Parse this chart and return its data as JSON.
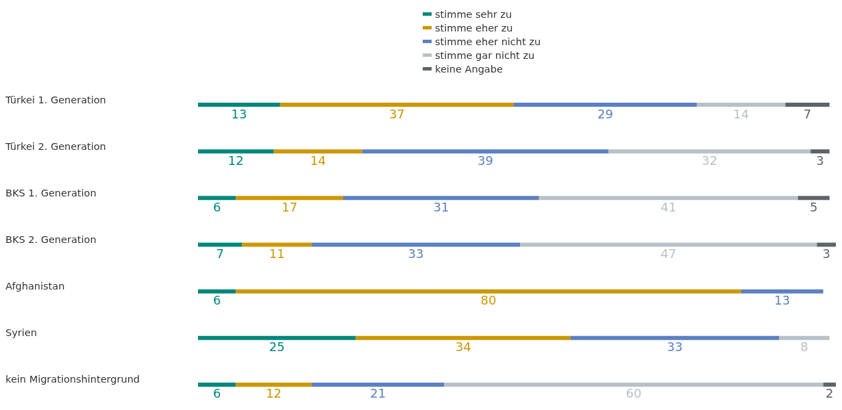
{
  "chart_data": {
    "type": "bar",
    "orientation": "horizontal",
    "stacked": true,
    "tick_labels": "y",
    "data_labels": true,
    "legend": "top",
    "categories": [
      "Türkei 1. Generation",
      "Türkei 2. Generation",
      "BKS 1. Generation",
      "BKS 2. Generation",
      "Afghanistan",
      "Syrien",
      "kein Migrationshintergrund"
    ],
    "series": [
      {
        "name": "stimme sehr zu",
        "color": "#00877c",
        "values": [
          13,
          12,
          6,
          7,
          6,
          25,
          6
        ]
      },
      {
        "name": "stimme eher zu",
        "color": "#cc9700",
        "values": [
          37,
          14,
          17,
          11,
          80,
          34,
          12
        ]
      },
      {
        "name": "stimme eher nicht zu",
        "color": "#5b80c3",
        "values": [
          29,
          39,
          31,
          33,
          13,
          33,
          21
        ]
      },
      {
        "name": "stimme gar nicht zu",
        "color": "#b9c1c7",
        "values": [
          14,
          32,
          41,
          47,
          null,
          8,
          60
        ]
      },
      {
        "name": "keine Angabe",
        "color": "#5d6469",
        "values": [
          7,
          3,
          5,
          3,
          null,
          null,
          2
        ]
      }
    ]
  }
}
